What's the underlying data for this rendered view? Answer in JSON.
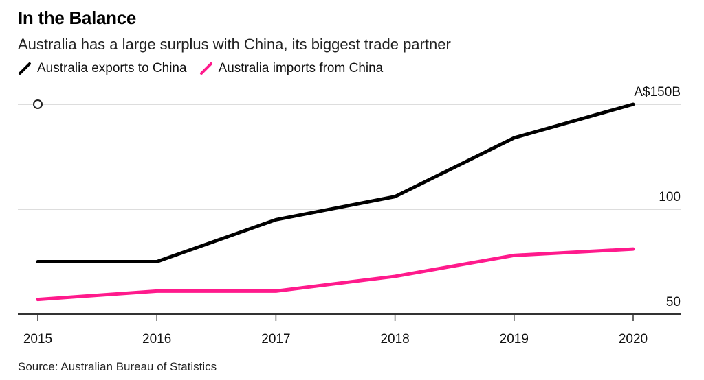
{
  "header": {
    "title": "In the Balance",
    "subtitle": "Australia has a large surplus with China, its biggest trade partner"
  },
  "legend": [
    {
      "label": "Australia exports to China",
      "color": "#000000"
    },
    {
      "label": "Australia imports from China",
      "color": "#ff1a8c"
    }
  ],
  "source": "Source: Australian Bureau of Statistics",
  "chart_data": {
    "type": "line",
    "title": "In the Balance",
    "subtitle": "Australia has a large surplus with China, its biggest trade partner",
    "xlabel": "",
    "ylabel": "",
    "x": [
      "2015",
      "2016",
      "2017",
      "2018",
      "2019",
      "2020"
    ],
    "series": [
      {
        "name": "Australia exports to China",
        "color": "#000000",
        "values": [
          75,
          75,
          95,
          106,
          134,
          150
        ]
      },
      {
        "name": "Australia imports from China",
        "color": "#ff1a8c",
        "values": [
          57,
          61,
          61,
          68,
          78,
          81
        ]
      }
    ],
    "ylim": [
      50,
      150
    ],
    "y_ticks": [
      50,
      100,
      150
    ],
    "y_tick_labels": [
      "50",
      "100",
      "A$150B"
    ],
    "grid": true,
    "legend_position": "top-left",
    "source": "Source: Australian Bureau of Statistics"
  }
}
